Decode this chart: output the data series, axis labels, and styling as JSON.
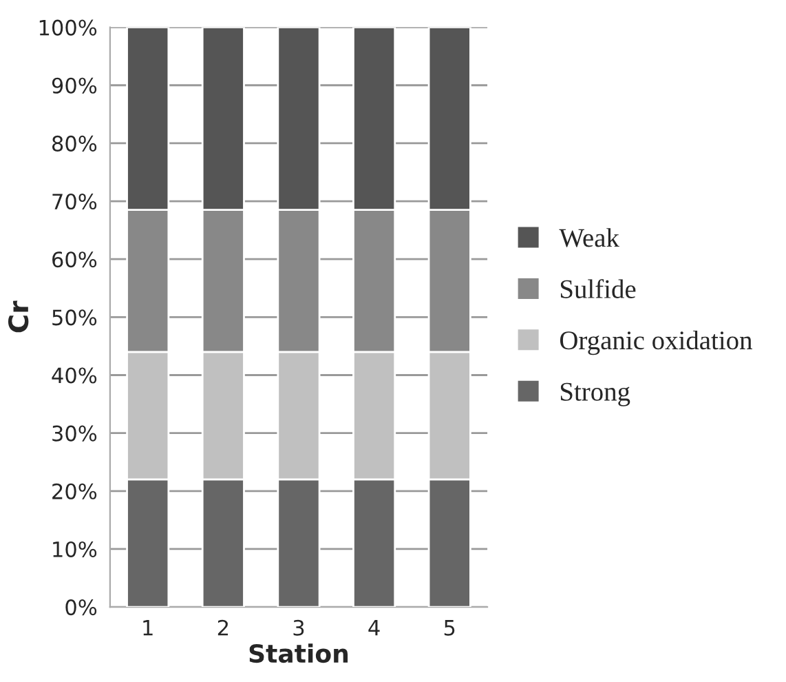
{
  "chart_data": {
    "type": "bar",
    "stacked": true,
    "xlabel": "Station",
    "ylabel": "Cr",
    "categories": [
      "1",
      "2",
      "3",
      "4",
      "5"
    ],
    "series": [
      {
        "name": "Strong",
        "color": "#666666",
        "values": [
          22,
          22,
          22,
          22,
          22
        ]
      },
      {
        "name": "Organic oxidation",
        "color": "#c0c0c0",
        "values": [
          22,
          22,
          22,
          22,
          22
        ]
      },
      {
        "name": "Sulfide",
        "color": "#888888",
        "values": [
          24.5,
          24.5,
          24.5,
          24.5,
          24.5
        ]
      },
      {
        "name": "Weak",
        "color": "#555555",
        "values": [
          31.5,
          31.5,
          31.5,
          31.5,
          31.5
        ]
      }
    ],
    "ylim": [
      0,
      100
    ],
    "yticks": [
      {
        "value": 0,
        "label": "0%"
      },
      {
        "value": 10,
        "label": "10%"
      },
      {
        "value": 20,
        "label": "20%"
      },
      {
        "value": 30,
        "label": "30%"
      },
      {
        "value": 40,
        "label": "40%"
      },
      {
        "value": 50,
        "label": "50%"
      },
      {
        "value": 60,
        "label": "60%"
      },
      {
        "value": 70,
        "label": "70%"
      },
      {
        "value": 80,
        "label": "80%"
      },
      {
        "value": 90,
        "label": "90%"
      },
      {
        "value": 100,
        "label": "100%"
      }
    ],
    "grid": "y",
    "legend": "right"
  }
}
